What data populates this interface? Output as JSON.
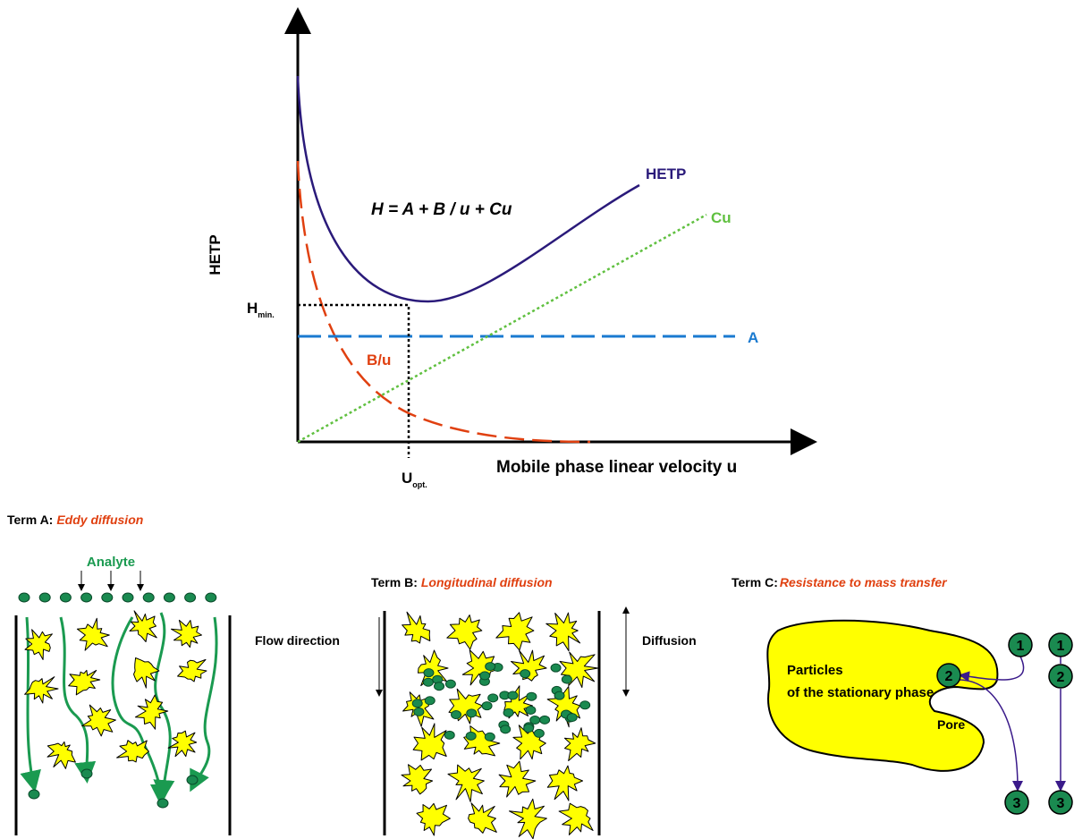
{
  "graph": {
    "y_axis_label": "HETP",
    "x_axis_label": "Mobile phase linear velocity u",
    "equation": "H = A + B / u + Cu",
    "curves": {
      "hetp": "HETP",
      "c": "Cu",
      "a": "A",
      "b": "B/u"
    },
    "h_min": {
      "main": "H",
      "sub": "min."
    },
    "u_opt": {
      "main": "U",
      "sub": "opt."
    }
  },
  "term_a": {
    "label": "Term A:",
    "name": "Eddy diffusion",
    "analyte": "Analyte"
  },
  "term_b": {
    "label": "Term B:",
    "name": "Longitudinal diffusion",
    "flow": "Flow direction",
    "diffusion": "Diffusion"
  },
  "term_c": {
    "label": "Term C:",
    "name": "Resistance to mass transfer",
    "particles": [
      "Particles",
      "of the stationary phase"
    ],
    "pore": "Pore",
    "steps_left": [
      "1",
      "2",
      "3"
    ],
    "steps_right": [
      "1",
      "2",
      "3"
    ]
  }
}
